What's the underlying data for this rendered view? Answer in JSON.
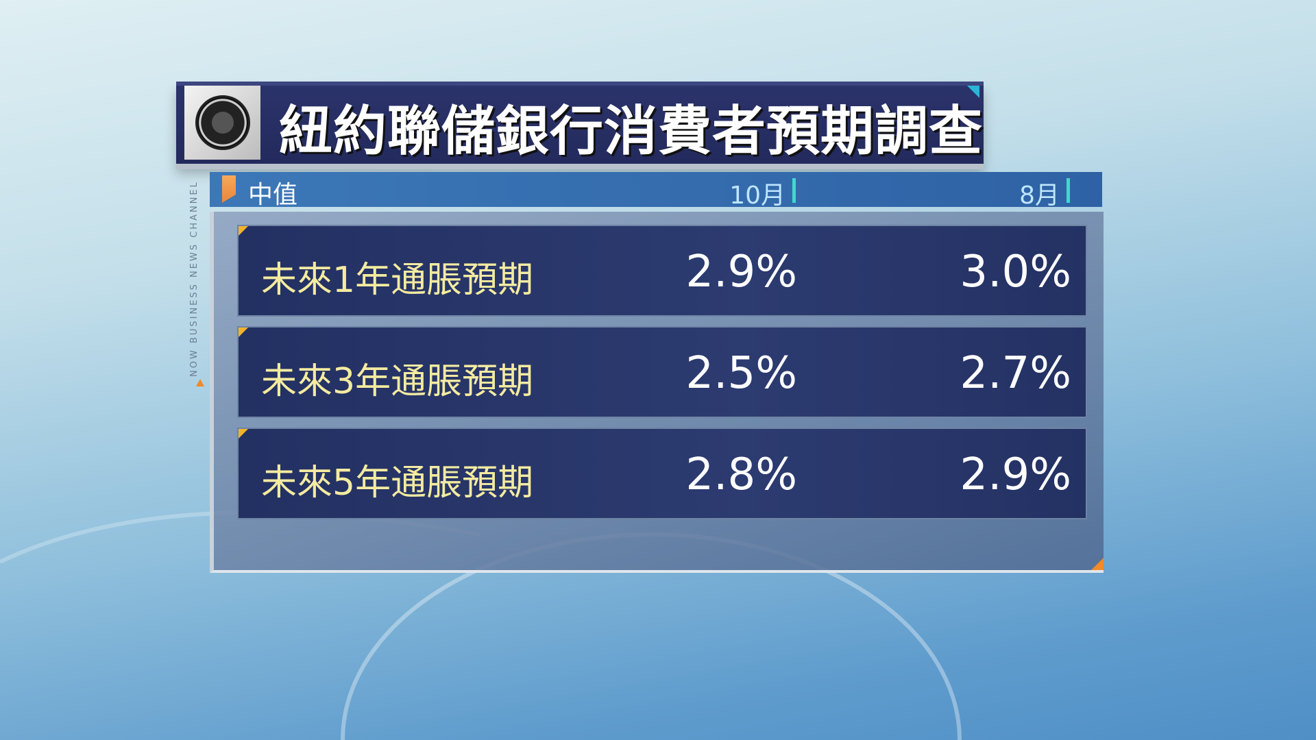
{
  "title": "紐約聯儲銀行消費者預期調查",
  "logo": "Federal Reserve seal",
  "channel_watermark": "NOW BUSINESS NEWS CHANNEL",
  "header": {
    "label": "中值",
    "columns": [
      "10月",
      "8月"
    ]
  },
  "rows": [
    {
      "label": "未來1年通脹預期",
      "values": [
        "2.9%",
        "3.0%"
      ]
    },
    {
      "label": "未來3年通脹預期",
      "values": [
        "2.5%",
        "2.7%"
      ]
    },
    {
      "label": "未來5年通脹預期",
      "values": [
        "2.8%",
        "2.9%"
      ]
    }
  ],
  "colors": {
    "title_bg": "#232a5c",
    "header_bg": "#3c78b8",
    "row_bg": "#263365",
    "label_text": "#f4eba0",
    "accent": "#f08a2a"
  }
}
